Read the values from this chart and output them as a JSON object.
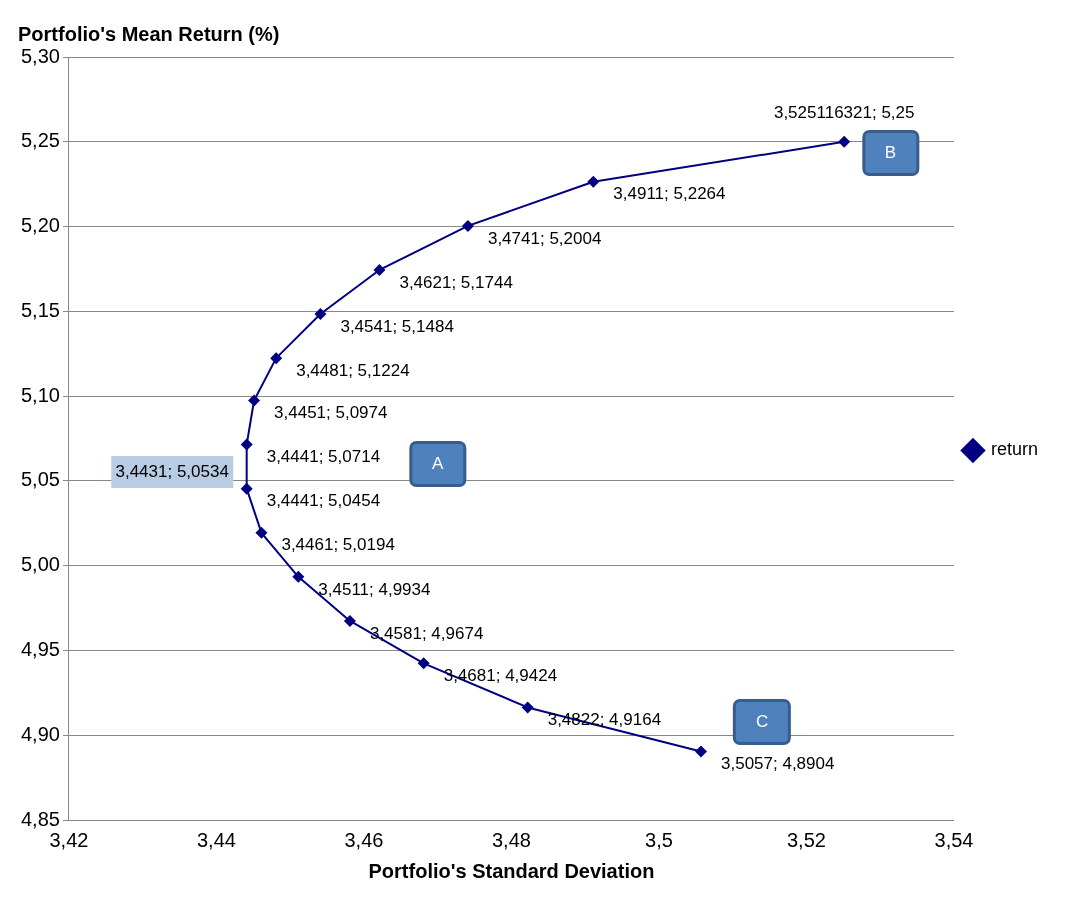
{
  "chart_data": {
    "type": "line",
    "xlabel": "Portfolio's Standard Deviation",
    "ylabel": "Portfolio's Mean Return (%)",
    "x": [
      3.525116321,
      3.4911,
      3.4741,
      3.4621,
      3.4541,
      3.4481,
      3.4451,
      3.4441,
      3.4441,
      3.4461,
      3.4511,
      3.4581,
      3.4681,
      3.4822,
      3.5057
    ],
    "series": [
      {
        "name": "return",
        "color": "#000080",
        "values": [
          5.25,
          5.2264,
          5.2004,
          5.1744,
          5.1484,
          5.1224,
          5.0974,
          5.0714,
          5.0454,
          5.0194,
          4.9934,
          4.9674,
          4.9424,
          4.9164,
          4.8904
        ],
        "value_labels": [
          "3,525116321; 5,25",
          "3,4911; 5,2264",
          "3,4741; 5,2004",
          "3,4621; 5,1744",
          "3,4541; 5,1484",
          "3,4481; 5,1224",
          "3,4451; 5,0974",
          "3,4441; 5,0714",
          "3,4441; 5,0454",
          "3,4461; 5,0194",
          "3,4511; 4,9934",
          "3,4581; 4,9674",
          "3,4681; 4,9424",
          "3,4822; 4,9164",
          "3,5057; 4,8904"
        ]
      }
    ],
    "xlim": [
      3.42,
      3.54
    ],
    "xticks": [
      {
        "value": 3.42,
        "label": "3,42"
      },
      {
        "value": 3.44,
        "label": "3,44"
      },
      {
        "value": 3.46,
        "label": "3,46"
      },
      {
        "value": 3.48,
        "label": "3,48"
      },
      {
        "value": 3.5,
        "label": "3,5"
      },
      {
        "value": 3.52,
        "label": "3,52"
      },
      {
        "value": 3.54,
        "label": "3,54"
      }
    ],
    "ylim": [
      4.85,
      5.3
    ],
    "yticks": [
      {
        "value": 4.85,
        "label": "4,85"
      },
      {
        "value": 4.9,
        "label": "4,90"
      },
      {
        "value": 4.95,
        "label": "4,95"
      },
      {
        "value": 5.0,
        "label": "5,00"
      },
      {
        "value": 5.05,
        "label": "5,05"
      },
      {
        "value": 5.1,
        "label": "5,10"
      },
      {
        "value": 5.15,
        "label": "5,15"
      },
      {
        "value": 5.2,
        "label": "5,20"
      },
      {
        "value": 5.25,
        "label": "5,25"
      },
      {
        "value": 5.3,
        "label": "5,30"
      }
    ],
    "annotations": [
      "3,4431; 5,0534",
      "A",
      "B",
      "C"
    ],
    "grid": "y",
    "legend": "right",
    "marker": "diamond",
    "line_style": "solid"
  }
}
